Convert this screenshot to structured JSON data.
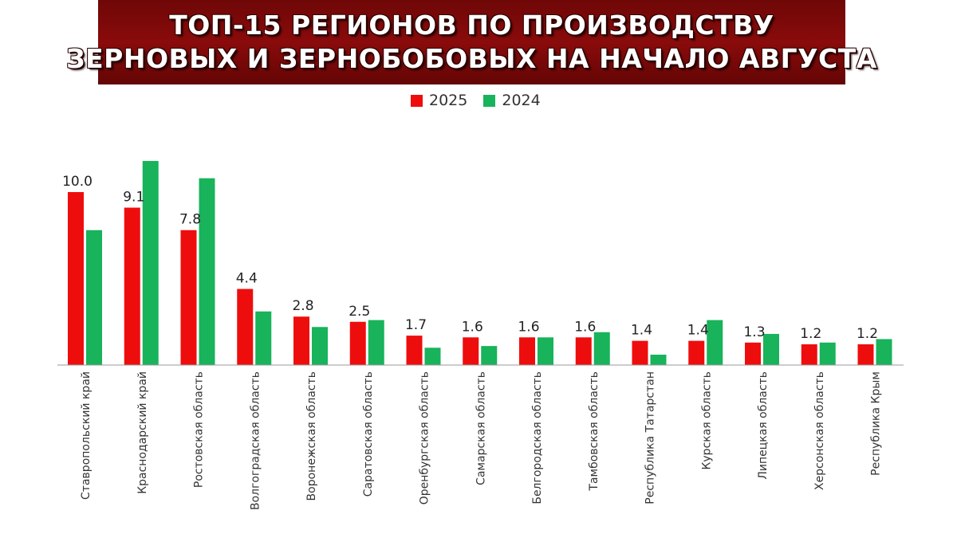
{
  "title": {
    "line1": "ТОП-15 РЕГИОНОВ ПО ПРОИЗВОДСТВУ",
    "line2": "ЗЕРНОВЫХ И ЗЕРНОБОБОВЫХ НА НАЧАЛО АВГУСТА"
  },
  "colors": {
    "banner": "#7a0909",
    "s2025": "#ee0d0d",
    "s2024": "#18b35b"
  },
  "chart_data": {
    "type": "bar",
    "title": "ТОП-15 РЕГИОНОВ ПО ПРОИЗВОДСТВУ ЗЕРНОВЫХ И ЗЕРНОБОБОВЫХ НА НАЧАЛО АВГУСТА",
    "categories": [
      "Ставропольский край",
      "Краснодарский край",
      "Ростовская область",
      "Волгоградская область",
      "Воронежская область",
      "Саратовская область",
      "Оренбургская область",
      "Самарская область",
      "Белгородская область",
      "Тамбовская область",
      "Республика Татарстан",
      "Курская область",
      "Липецкая область",
      "Херсонская область",
      "Республика Крым"
    ],
    "series": [
      {
        "name": "2025",
        "color": "#ee0d0d",
        "values": [
          10.0,
          9.1,
          7.8,
          4.4,
          2.8,
          2.5,
          1.7,
          1.6,
          1.6,
          1.6,
          1.4,
          1.4,
          1.3,
          1.2,
          1.2
        ],
        "labels": [
          "10.0",
          "9.1",
          "7.8",
          "4.4",
          "2.8",
          "2.5",
          "1.7",
          "1.6",
          "1.6",
          "1.6",
          "1.4",
          "1.4",
          "1.3",
          "1.2",
          "1.2"
        ]
      },
      {
        "name": "2024",
        "color": "#18b35b",
        "values": [
          7.8,
          11.8,
          10.8,
          3.1,
          2.2,
          2.6,
          1.0,
          1.1,
          1.6,
          1.9,
          0.6,
          2.6,
          1.8,
          1.3,
          1.5
        ]
      }
    ],
    "ylim": [
      0,
      12
    ],
    "grid": false,
    "legend": "top-center"
  }
}
